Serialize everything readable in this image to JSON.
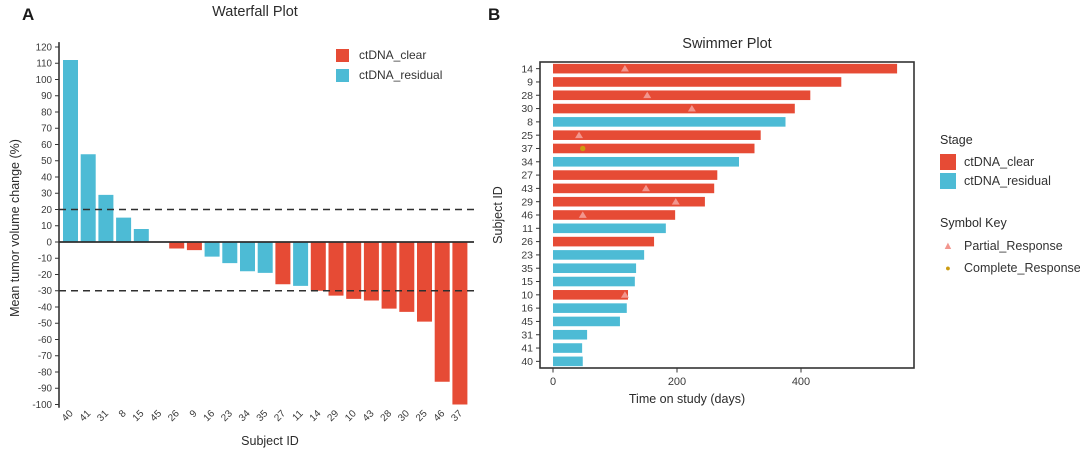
{
  "colors": {
    "clear": "#E64B35",
    "residual": "#4DBBD5",
    "partial": "#F2968E",
    "complete": "#CC9C12",
    "axis": "#333333",
    "refline": "#2f2f2f",
    "tick_text": "#3a3a3a"
  },
  "panelA": {
    "label": "A",
    "title": "Waterfall Plot",
    "xlabel": "Subject ID",
    "ylabel": "Mean tumor volume change (%)",
    "legend": [
      {
        "label": "ctDNA_clear",
        "color": "#E64B35"
      },
      {
        "label": "ctDNA_residual",
        "color": "#4DBBD5"
      }
    ]
  },
  "panelB": {
    "label": "B",
    "title": "Swimmer Plot",
    "xlabel": "Time on study (days)",
    "ylabel": "Subject ID",
    "legend_title": "Stage",
    "legend": [
      {
        "label": "ctDNA_clear",
        "color": "#E64B35"
      },
      {
        "label": "ctDNA_residual",
        "color": "#4DBBD5"
      }
    ],
    "symbol_key_title": "Symbol Key",
    "symbols": [
      {
        "label": "Partial_Response",
        "glyph": "triangle",
        "color": "#F2968E"
      },
      {
        "label": "Complete_Response",
        "glyph": "dot",
        "color": "#CC9C12"
      }
    ]
  },
  "chart_data": [
    {
      "type": "bar",
      "title": "Waterfall Plot",
      "xlabel": "Subject ID",
      "ylabel": "Mean tumor volume change (%)",
      "ylim": [
        -100,
        120
      ],
      "ytick_step": 10,
      "reference_lines": [
        20,
        -30
      ],
      "grid": false,
      "legend_position": "top-right",
      "legend": [
        "ctDNA_clear",
        "ctDNA_residual"
      ],
      "categories": [
        "40",
        "41",
        "31",
        "8",
        "15",
        "45",
        "26",
        "9",
        "16",
        "23",
        "34",
        "35",
        "27",
        "11",
        "14",
        "29",
        "10",
        "43",
        "28",
        "30",
        "25",
        "46",
        "37"
      ],
      "values": [
        112,
        54,
        29,
        15,
        8,
        0,
        -4,
        -5,
        -9,
        -13,
        -18,
        -19,
        -26,
        -27,
        -30,
        -33,
        -35,
        -36,
        -41,
        -43,
        -49,
        -86,
        -100
      ],
      "stages": [
        "residual",
        "residual",
        "residual",
        "residual",
        "residual",
        "residual",
        "clear",
        "clear",
        "residual",
        "residual",
        "residual",
        "residual",
        "clear",
        "residual",
        "clear",
        "clear",
        "clear",
        "clear",
        "clear",
        "clear",
        "clear",
        "clear",
        "clear"
      ]
    },
    {
      "type": "bar-horizontal",
      "title": "Swimmer Plot",
      "xlabel": "Time on study (days)",
      "ylabel": "Subject ID",
      "xlim": [
        0,
        580
      ],
      "xticks": [
        0,
        200,
        400
      ],
      "grid": false,
      "legend_position": "right",
      "subjects": [
        "14",
        "9",
        "28",
        "30",
        "8",
        "25",
        "37",
        "34",
        "27",
        "43",
        "29",
        "46",
        "11",
        "26",
        "23",
        "35",
        "15",
        "10",
        "16",
        "45",
        "31",
        "41",
        "40"
      ],
      "days": [
        555,
        465,
        415,
        390,
        375,
        335,
        325,
        300,
        265,
        260,
        245,
        197,
        182,
        163,
        147,
        134,
        132,
        121,
        119,
        108,
        55,
        47,
        48
      ],
      "stages": [
        "clear",
        "clear",
        "clear",
        "clear",
        "residual",
        "clear",
        "clear",
        "residual",
        "clear",
        "clear",
        "clear",
        "clear",
        "residual",
        "clear",
        "residual",
        "residual",
        "residual",
        "clear",
        "residual",
        "residual",
        "residual",
        "residual",
        "residual"
      ],
      "markers": [
        {
          "subject": "14",
          "type": "Partial_Response",
          "day": 116
        },
        {
          "subject": "28",
          "type": "Partial_Response",
          "day": 152
        },
        {
          "subject": "30",
          "type": "Partial_Response",
          "day": 224
        },
        {
          "subject": "25",
          "type": "Partial_Response",
          "day": 42
        },
        {
          "subject": "37",
          "type": "Complete_Response",
          "day": 48
        },
        {
          "subject": "43",
          "type": "Partial_Response",
          "day": 150
        },
        {
          "subject": "29",
          "type": "Partial_Response",
          "day": 198
        },
        {
          "subject": "46",
          "type": "Partial_Response",
          "day": 48
        },
        {
          "subject": "10",
          "type": "Partial_Response",
          "day": 116
        }
      ]
    }
  ]
}
